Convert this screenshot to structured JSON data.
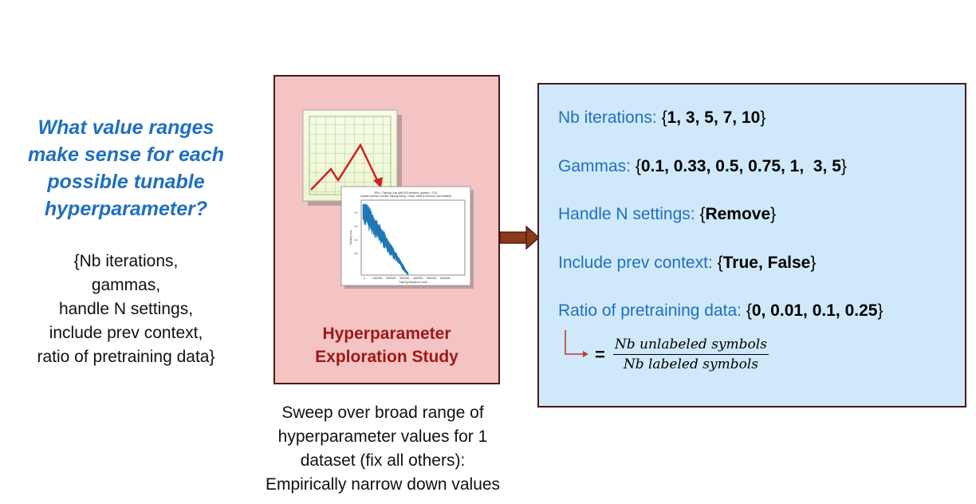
{
  "question": {
    "lines": [
      "What value ranges",
      "make sense for each",
      "possible tunable",
      "hyperparameter?"
    ]
  },
  "param_list": {
    "lines": [
      "{Nb iterations,",
      "gammas,",
      "handle N settings,",
      "include prev context,",
      "ratio of pretraining data}"
    ]
  },
  "study": {
    "title_lines": [
      "Hyperparameter",
      "Exploration Study"
    ],
    "thumbnail_caption": "SPA-1 Training Loss (with 200 iterations, gamma = 0.33, exclude previous context, training timing = False, initial N removed, train dataset)",
    "thumbnail_xlabel": "Training Sequence Count",
    "thumbnail_ylabel": "Training Loss"
  },
  "sweep": {
    "lines": [
      "Sweep over broad range of",
      "hyperparameter values for 1",
      "dataset (fix all others):",
      "Empirically narrow down values"
    ]
  },
  "ranges": {
    "rows": [
      {
        "label": "Nb iterations: ",
        "open": "{",
        "values": "1, 3, 5, 7, 10",
        "close": "}"
      },
      {
        "label": "Gammas: ",
        "open": "{",
        "values": "0.1, 0.33, 0.5, 0.75, 1,  3, 5",
        "close": "}"
      },
      {
        "label": "Handle N settings: ",
        "open": "{",
        "values": "Remove",
        "close": "}"
      },
      {
        "label": "Include prev context: ",
        "open": "{",
        "values": "True, False",
        "close": "}"
      },
      {
        "label": "Ratio of pretraining data: ",
        "open": "{",
        "values": "0, 0.01, 0.1, 0.25",
        "close": "}"
      }
    ],
    "formula": {
      "equals": "=",
      "numerator": "Nb unlabeled symbols",
      "denominator": "Nb labeled symbols"
    }
  },
  "colors": {
    "question_blue": "#1f6fc0",
    "study_fill": "#f4c4c4",
    "study_title": "#a01818",
    "range_fill": "#cfe9fb",
    "arrow": "#8a3a1a"
  }
}
